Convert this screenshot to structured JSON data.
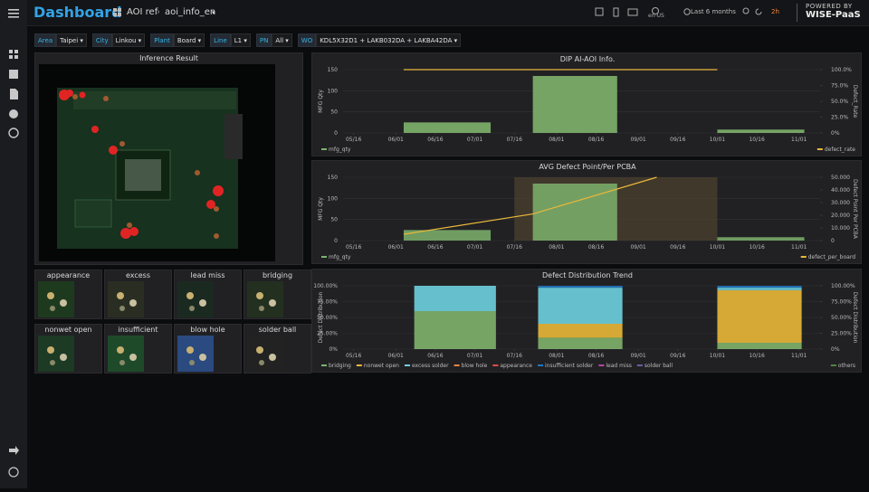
{
  "header": {
    "title": "Dashboard",
    "folder": "AOI ref",
    "page": "aoi_info_en",
    "language": "en-US",
    "time_range": "Last 6 months",
    "refresh": "2h",
    "powered_by": "POWERED BY",
    "brand": "WISE-PaaS"
  },
  "filters": [
    {
      "label": "Area",
      "value": "Taipei"
    },
    {
      "label": "City",
      "value": "Linkou"
    },
    {
      "label": "Plant",
      "value": "Board"
    },
    {
      "label": "Line",
      "value": "L1"
    },
    {
      "label": "PN",
      "value": "All"
    },
    {
      "label": "WO",
      "value": "KDL5X32D1 + LAKB032DA + LAKBA42DA"
    }
  ],
  "inference": {
    "title": "Inference Result"
  },
  "defects": [
    "appearance",
    "excess",
    "lead miss",
    "bridging",
    "nonwet open",
    "insufficient",
    "blow hole",
    "solder ball"
  ],
  "chart_data": [
    {
      "type": "bar",
      "title": "DIP AI-AOI Info.",
      "y_label": "MFG Qty",
      "y2_label": "Defect_Rate",
      "xlim": [
        132,
        313
      ],
      "xticks": [
        {
          "value": 136,
          "label": "05/16"
        },
        {
          "value": 152,
          "label": "06/01"
        },
        {
          "value": 167,
          "label": "06/16"
        },
        {
          "value": 182,
          "label": "07/01"
        },
        {
          "value": 197,
          "label": "07/16"
        },
        {
          "value": 213,
          "label": "08/01"
        },
        {
          "value": 228,
          "label": "08/16"
        },
        {
          "value": 244,
          "label": "09/01"
        },
        {
          "value": 259,
          "label": "09/16"
        },
        {
          "value": 274,
          "label": "10/01"
        },
        {
          "value": 289,
          "label": "10/16"
        },
        {
          "value": 305,
          "label": "11/01"
        }
      ],
      "ylim": [
        0,
        150
      ],
      "yticks": [
        0,
        50,
        100,
        150
      ],
      "y2lim": [
        0,
        100
      ],
      "y2ticks": [
        {
          "value": 0,
          "label": "0%"
        },
        {
          "value": 25,
          "label": "25.0%"
        },
        {
          "value": 50,
          "label": "50.0%"
        },
        {
          "value": 75,
          "label": "75.0%"
        },
        {
          "value": 100,
          "label": "100.0%"
        }
      ],
      "x_ranges": [
        [
          155,
          188
        ],
        [
          204,
          236
        ],
        [
          274,
          307
        ]
      ],
      "series": [
        {
          "name": "mfg_qty",
          "kind": "bar",
          "color": "#7eb26d",
          "values": [
            25,
            135,
            8
          ],
          "legend": "left"
        },
        {
          "name": "defect_rate",
          "kind": "line",
          "axis": "y2",
          "color": "#eab839",
          "x": [
            155,
            204,
            274
          ],
          "values": [
            100,
            100,
            100
          ],
          "legend": "right"
        }
      ]
    },
    {
      "type": "bar",
      "title": "AVG Defect Point/Per PCBA",
      "y_label": "MFG Qty",
      "y2_label": "Defect Point Per PCBA",
      "xlim": [
        132,
        313
      ],
      "xticks": [
        {
          "value": 136,
          "label": "05/16"
        },
        {
          "value": 152,
          "label": "06/01"
        },
        {
          "value": 167,
          "label": "06/16"
        },
        {
          "value": 182,
          "label": "07/01"
        },
        {
          "value": 197,
          "label": "07/16"
        },
        {
          "value": 213,
          "label": "08/01"
        },
        {
          "value": 228,
          "label": "08/16"
        },
        {
          "value": 244,
          "label": "09/01"
        },
        {
          "value": 259,
          "label": "09/16"
        },
        {
          "value": 274,
          "label": "10/01"
        },
        {
          "value": 289,
          "label": "10/16"
        },
        {
          "value": 305,
          "label": "11/01"
        }
      ],
      "ylim": [
        0,
        150
      ],
      "yticks": [
        0,
        50,
        100,
        150
      ],
      "y2lim": [
        0,
        50000
      ],
      "y2ticks": [
        0,
        {
          "value": 10000,
          "label": "10.000"
        },
        {
          "value": 20000,
          "label": "20.000"
        },
        {
          "value": 30000,
          "label": "30.000"
        },
        {
          "value": 40000,
          "label": "40.000"
        },
        {
          "value": 50000,
          "label": "50.000"
        }
      ],
      "highlight": {
        "x": [
          197,
          274
        ],
        "color": "#4a3f2e"
      },
      "x_ranges": [
        [
          155,
          188
        ],
        [
          204,
          236
        ],
        [
          274,
          307
        ]
      ],
      "series": [
        {
          "name": "mfg_qty",
          "kind": "bar",
          "color": "#7eb26d",
          "values": [
            25,
            135,
            8
          ],
          "legend": "left"
        },
        {
          "name": "defect_per_board",
          "kind": "line",
          "axis": "y2",
          "color": "#eab839",
          "x": [
            155,
            204,
            251
          ],
          "values": [
            5000,
            21000,
            50000
          ],
          "legend": "right"
        }
      ]
    },
    {
      "type": "bar",
      "stacked": true,
      "title": "Defect Distribution Trend",
      "y_label": "Defect Distribution",
      "y2_label": "Defect Distribution",
      "xlim": [
        132,
        313
      ],
      "xticks": [
        {
          "value": 136,
          "label": "05/16"
        },
        {
          "value": 152,
          "label": "06/01"
        },
        {
          "value": 167,
          "label": "06/16"
        },
        {
          "value": 182,
          "label": "07/01"
        },
        {
          "value": 197,
          "label": "07/16"
        },
        {
          "value": 213,
          "label": "08/01"
        },
        {
          "value": 228,
          "label": "08/16"
        },
        {
          "value": 244,
          "label": "09/01"
        },
        {
          "value": 259,
          "label": "09/16"
        },
        {
          "value": 274,
          "label": "10/01"
        },
        {
          "value": 289,
          "label": "10/16"
        },
        {
          "value": 305,
          "label": "11/01"
        }
      ],
      "ylim": [
        0,
        100
      ],
      "yticks": [
        {
          "value": 0,
          "label": "0%"
        },
        {
          "value": 25,
          "label": "25.00%"
        },
        {
          "value": 50,
          "label": "50.00%"
        },
        {
          "value": 75,
          "label": "75.00%"
        },
        {
          "value": 100,
          "label": "100.00%"
        }
      ],
      "y2lim": [
        0,
        100
      ],
      "y2ticks": [
        {
          "value": 0,
          "label": "0%"
        },
        {
          "value": 25,
          "label": "25.00%"
        },
        {
          "value": 50,
          "label": "50.00%"
        },
        {
          "value": 75,
          "label": "75.00%"
        },
        {
          "value": 100,
          "label": "100.00%"
        }
      ],
      "x_ranges": [
        [
          159,
          190
        ],
        [
          206,
          238
        ],
        [
          274,
          306
        ]
      ],
      "series": [
        {
          "name": "bridging",
          "kind": "bar",
          "color": "#7eb26d",
          "values": [
            60,
            18,
            10
          ],
          "legend": "left"
        },
        {
          "name": "nonwet open",
          "kind": "bar",
          "color": "#eab839",
          "values": [
            0,
            22,
            83
          ],
          "legend": "left"
        },
        {
          "name": "excess solder",
          "kind": "bar",
          "color": "#6ed0e0",
          "values": [
            40,
            57,
            4
          ],
          "legend": "left"
        },
        {
          "name": "blow hole",
          "kind": "bar",
          "color": "#ef843c",
          "values": [
            0,
            0,
            0
          ],
          "legend": "left"
        },
        {
          "name": "appearance",
          "kind": "bar",
          "color": "#e24d42",
          "values": [
            0,
            0,
            0
          ],
          "legend": "left"
        },
        {
          "name": "insufficient solder",
          "kind": "bar",
          "color": "#1f78c1",
          "values": [
            0,
            3,
            3
          ],
          "legend": "left"
        },
        {
          "name": "lead miss",
          "kind": "bar",
          "color": "#ba43a9",
          "values": [
            0,
            0,
            0
          ],
          "legend": "left"
        },
        {
          "name": "solder ball",
          "kind": "bar",
          "color": "#705da0",
          "values": [
            0,
            0,
            0
          ],
          "legend": "left"
        },
        {
          "name": "others",
          "kind": "bar",
          "color": "#508642",
          "values": [
            0,
            0,
            0
          ],
          "legend": "right"
        }
      ]
    }
  ]
}
